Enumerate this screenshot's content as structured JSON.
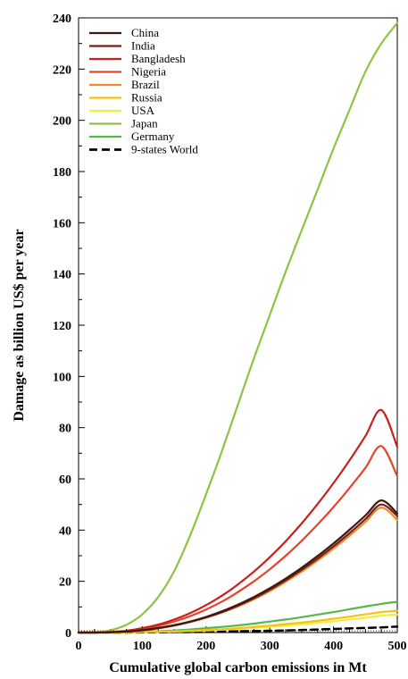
{
  "chart_data": {
    "type": "line",
    "title": "",
    "xlabel": "Cumulative global carbon emissions in Mt",
    "ylabel": "Damage as billion US$ per year",
    "xlim": [
      0,
      500
    ],
    "ylim": [
      0,
      240
    ],
    "xticks": [
      0,
      100,
      200,
      300,
      400,
      500
    ],
    "yticks": [
      0,
      20,
      40,
      60,
      80,
      100,
      120,
      140,
      160,
      180,
      200,
      220,
      240
    ],
    "grid": false,
    "legend_position": "top-left",
    "x": [
      0,
      25,
      50,
      75,
      100,
      125,
      150,
      175,
      200,
      225,
      250,
      275,
      300,
      325,
      350,
      375,
      400,
      425,
      450,
      475,
      500
    ],
    "series": [
      {
        "name": "China",
        "color": "#3a1a12",
        "dashed": false,
        "values": [
          0,
          0,
          0.1,
          0.4,
          0.9,
          1.8,
          2.9,
          4.3,
          6.1,
          8.3,
          10.9,
          13.9,
          17.3,
          21.1,
          25.3,
          29.9,
          34.8,
          40.1,
          45.7,
          51.6,
          46.5
        ]
      },
      {
        "name": "India",
        "color": "#7a1e14",
        "dashed": false,
        "values": [
          0,
          0,
          0.1,
          0.4,
          0.9,
          1.7,
          2.8,
          4.2,
          5.9,
          8.0,
          10.5,
          13.4,
          16.7,
          20.4,
          24.5,
          28.9,
          33.7,
          38.8,
          44.3,
          50.0,
          45.5
        ]
      },
      {
        "name": "Bangladesh",
        "color": "#c8201c",
        "dashed": false,
        "values": [
          0,
          0,
          0.2,
          0.7,
          1.7,
          3.1,
          5.1,
          7.6,
          10.7,
          14.4,
          18.8,
          23.8,
          29.4,
          35.7,
          42.6,
          50.2,
          58.4,
          67.2,
          76.7,
          86.9,
          72.5
        ]
      },
      {
        "name": "Nigeria",
        "color": "#e8432a",
        "dashed": false,
        "values": [
          0,
          0,
          0.2,
          0.6,
          1.4,
          2.6,
          4.3,
          6.4,
          9.0,
          12.1,
          15.8,
          20.0,
          24.7,
          30.0,
          35.8,
          42.2,
          49.0,
          56.4,
          64.3,
          72.8,
          61.0
        ]
      },
      {
        "name": "Brazil",
        "color": "#f08a2a",
        "dashed": false,
        "values": [
          0,
          0,
          0.1,
          0.4,
          0.9,
          1.7,
          2.7,
          4.1,
          5.8,
          7.8,
          10.2,
          13.0,
          16.2,
          19.8,
          23.8,
          28.1,
          32.8,
          37.8,
          43.2,
          48.8,
          44.0
        ]
      },
      {
        "name": "Russia",
        "color": "#f5c21a",
        "dashed": false,
        "values": [
          0,
          0,
          0,
          0.1,
          0.2,
          0.3,
          0.5,
          0.7,
          1.0,
          1.3,
          1.7,
          2.2,
          2.7,
          3.3,
          3.9,
          4.6,
          5.4,
          6.2,
          7.1,
          8.0,
          8.5
        ]
      },
      {
        "name": "USA",
        "color": "#f2ee3a",
        "dashed": false,
        "values": [
          0,
          0,
          0,
          0.1,
          0.2,
          0.3,
          0.4,
          0.6,
          0.8,
          1.1,
          1.4,
          1.8,
          2.2,
          2.7,
          3.2,
          3.8,
          4.4,
          5.1,
          5.8,
          6.6,
          7.0
        ]
      },
      {
        "name": "Japan",
        "color": "#8cc63e",
        "dashed": false,
        "values": [
          0,
          0.1,
          0.9,
          3.0,
          7.1,
          13.9,
          24.0,
          37.9,
          54.0,
          71.0,
          89.0,
          107.0,
          124.0,
          141.0,
          157.0,
          173.0,
          189.0,
          204.0,
          219.0,
          230.0,
          238.0
        ]
      },
      {
        "name": "Germany",
        "color": "#55b848",
        "dashed": false,
        "values": [
          0,
          0,
          0.1,
          0.2,
          0.3,
          0.5,
          0.8,
          1.2,
          1.7,
          2.2,
          2.8,
          3.5,
          4.3,
          5.1,
          6.0,
          7.0,
          8.0,
          9.1,
          10.2,
          11.2,
          12.0
        ]
      },
      {
        "name": "9-states World",
        "color": "#000000",
        "dashed": true,
        "values": [
          0,
          0,
          0,
          0,
          0.1,
          0.1,
          0.2,
          0.2,
          0.3,
          0.4,
          0.5,
          0.6,
          0.7,
          0.8,
          1.0,
          1.2,
          1.4,
          1.6,
          1.8,
          2.0,
          2.3
        ]
      }
    ]
  }
}
